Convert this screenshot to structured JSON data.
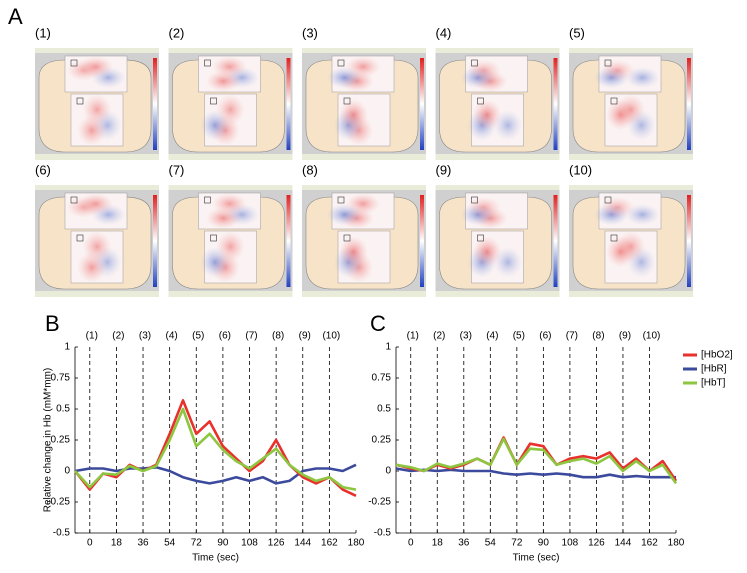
{
  "panel_a": {
    "label": "A",
    "maps": [
      "(1)",
      "(2)",
      "(3)",
      "(4)",
      "(5)",
      "(6)",
      "(7)",
      "(8)",
      "(9)",
      "(10)"
    ]
  },
  "chart_data": [
    {
      "type": "line",
      "label": "B",
      "ylabel": "Relative change in Hb (mM*mm)",
      "xlabel": "Time (sec)",
      "xlim": [
        -10,
        180
      ],
      "xticks": [
        0,
        18,
        36,
        54,
        72,
        90,
        108,
        126,
        144,
        162,
        180
      ],
      "ylim": [
        -0.5,
        1
      ],
      "yticks": [
        -0.5,
        -0.25,
        0,
        0.25,
        0.5,
        0.75,
        1
      ],
      "annotations": [
        {
          "x": 0,
          "text": "(1)"
        },
        {
          "x": 18,
          "text": "(2)"
        },
        {
          "x": 36,
          "text": "(3)"
        },
        {
          "x": 54,
          "text": "(4)"
        },
        {
          "x": 72,
          "text": "(5)"
        },
        {
          "x": 90,
          "text": "(6)"
        },
        {
          "x": 108,
          "text": "(7)"
        },
        {
          "x": 126,
          "text": "(8)"
        },
        {
          "x": 144,
          "text": "(9)"
        },
        {
          "x": 162,
          "text": "(10)"
        }
      ],
      "x": [
        -10,
        0,
        9,
        18,
        27,
        36,
        45,
        54,
        63,
        72,
        81,
        90,
        99,
        108,
        117,
        126,
        135,
        144,
        153,
        162,
        171,
        180
      ],
      "legend": false,
      "series": [
        {
          "color": "#3b4a9c",
          "values": [
            0,
            0.02,
            0.02,
            0,
            0.02,
            0.02,
            0.03,
            0,
            -0.05,
            -0.08,
            -0.1,
            -0.08,
            -0.05,
            -0.08,
            -0.05,
            -0.1,
            -0.08,
            0,
            0.02,
            0.02,
            0,
            0.05
          ]
        },
        {
          "color": "#e8302c",
          "values": [
            0,
            -0.15,
            -0.02,
            -0.05,
            0.05,
            0,
            0.05,
            0.3,
            0.57,
            0.3,
            0.4,
            0.2,
            0.1,
            0,
            0.08,
            0.25,
            0.05,
            -0.05,
            -0.1,
            -0.05,
            -0.15,
            -0.2
          ]
        },
        {
          "color": "#8dc63f",
          "values": [
            0,
            -0.13,
            -0.02,
            -0.03,
            0.04,
            0,
            0.04,
            0.25,
            0.5,
            0.2,
            0.3,
            0.17,
            0.08,
            0.02,
            0.1,
            0.18,
            0.05,
            -0.03,
            -0.08,
            -0.05,
            -0.13,
            -0.15
          ]
        }
      ]
    },
    {
      "type": "line",
      "label": "C",
      "xlabel": "Time (sec)",
      "xlim": [
        -10,
        180
      ],
      "xticks": [
        0,
        18,
        36,
        54,
        72,
        90,
        108,
        126,
        144,
        162,
        180
      ],
      "ylim": [
        -0.5,
        1
      ],
      "yticks": [
        -0.5,
        -0.25,
        0,
        0.25,
        0.5,
        0.75,
        1
      ],
      "annotations": [
        {
          "x": 0,
          "text": "(1)"
        },
        {
          "x": 18,
          "text": "(2)"
        },
        {
          "x": 36,
          "text": "(3)"
        },
        {
          "x": 54,
          "text": "(4)"
        },
        {
          "x": 72,
          "text": "(5)"
        },
        {
          "x": 90,
          "text": "(6)"
        },
        {
          "x": 108,
          "text": "(7)"
        },
        {
          "x": 126,
          "text": "(8)"
        },
        {
          "x": 144,
          "text": "(9)"
        },
        {
          "x": 162,
          "text": "(10)"
        }
      ],
      "x": [
        -10,
        0,
        9,
        18,
        27,
        36,
        45,
        54,
        63,
        72,
        81,
        90,
        99,
        108,
        117,
        126,
        135,
        144,
        153,
        162,
        171,
        180
      ],
      "legend": true,
      "series": [
        {
          "name": "[HbR]",
          "color": "#3b4a9c",
          "values": [
            0.02,
            0,
            0.01,
            0,
            0.01,
            0,
            0,
            0,
            -0.02,
            -0.03,
            -0.02,
            -0.03,
            -0.02,
            -0.03,
            -0.05,
            -0.05,
            -0.03,
            -0.05,
            -0.04,
            -0.05,
            -0.05,
            -0.05
          ]
        },
        {
          "name": "[HbO2]",
          "color": "#e8302c",
          "values": [
            0.05,
            0.02,
            0,
            0.05,
            0.02,
            0.05,
            0.1,
            0.05,
            0.27,
            0.05,
            0.22,
            0.2,
            0.05,
            0.1,
            0.12,
            0.1,
            0.15,
            0.02,
            0.1,
            0,
            0.08,
            -0.08
          ]
        },
        {
          "name": "[HbT]",
          "color": "#8dc63f",
          "values": [
            0.05,
            0.03,
            0,
            0.06,
            0.03,
            0.06,
            0.1,
            0.05,
            0.26,
            0.05,
            0.18,
            0.17,
            0.05,
            0.08,
            0.1,
            0.06,
            0.12,
            0,
            0.08,
            0,
            0.05,
            -0.1
          ]
        }
      ]
    }
  ]
}
